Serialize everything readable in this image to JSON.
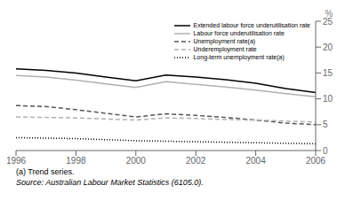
{
  "chart_data": {
    "type": "line",
    "y_label": "%",
    "annotations": [
      "(a) Trend series.",
      "Source: Australian Labour Market Statistics (6105.0)."
    ],
    "x": [
      1996,
      1997,
      1998,
      1999,
      2000,
      2001,
      2002,
      2003,
      2004,
      2005,
      2006
    ],
    "series": [
      {
        "name": "Extended labour force underutilisation rate",
        "color": "#000000",
        "line_style": "solid",
        "values": [
          15.8,
          15.5,
          15.0,
          14.2,
          13.5,
          14.6,
          14.2,
          13.7,
          13.0,
          12.0,
          11.2
        ]
      },
      {
        "name": "Labour force underutilisation rate",
        "color": "#b0b0b0",
        "line_style": "solid",
        "values": [
          14.5,
          14.2,
          13.6,
          12.9,
          12.2,
          13.3,
          12.8,
          12.3,
          11.7,
          11.0,
          10.4
        ]
      },
      {
        "name": "Unemployment rate(a)",
        "color": "#555555",
        "line_style": "dashed",
        "values": [
          8.7,
          8.5,
          7.9,
          7.2,
          6.5,
          7.1,
          6.8,
          6.4,
          5.9,
          5.3,
          5.0
        ]
      },
      {
        "name": "Underemployment rate",
        "color": "#b0b0b0",
        "line_style": "dashed",
        "values": [
          6.5,
          6.4,
          6.3,
          6.1,
          5.9,
          6.3,
          6.2,
          6.0,
          5.9,
          5.7,
          5.5
        ]
      },
      {
        "name": "Long-term unemployment rate(a)",
        "color": "#000000",
        "line_style": "dotted",
        "values": [
          2.5,
          2.4,
          2.3,
          2.1,
          1.9,
          1.8,
          1.7,
          1.6,
          1.5,
          1.4,
          1.3
        ]
      }
    ],
    "xlim": [
      1996,
      2006
    ],
    "xticks": [
      1996,
      1998,
      2000,
      2002,
      2004,
      2006
    ],
    "ylim": [
      0,
      25
    ],
    "yticks": [
      0,
      5,
      10,
      15,
      20,
      25
    ],
    "grid": false,
    "legend": "upper right"
  }
}
